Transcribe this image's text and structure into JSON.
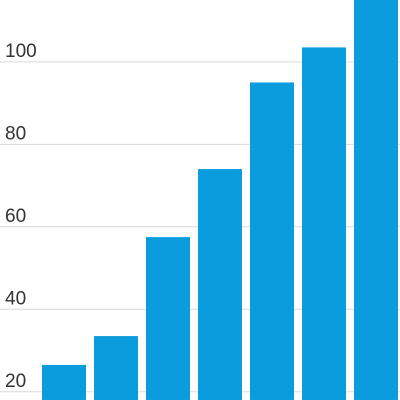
{
  "chart_data": {
    "type": "bar",
    "title": "",
    "xlabel": "",
    "ylabel": "",
    "values": [
      26.5,
      33.5,
      57.5,
      74,
      95,
      103.5,
      118
    ],
    "yticks": [
      "20",
      "40",
      "60",
      "80",
      "100"
    ],
    "ylim": [
      18,
      115
    ],
    "grid": true,
    "bar_color": "#0a9cdc"
  }
}
